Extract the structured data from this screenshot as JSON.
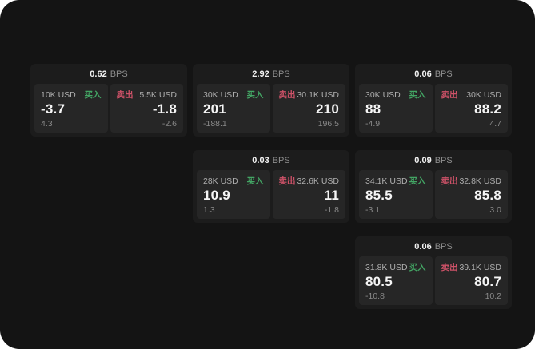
{
  "labels": {
    "bps_unit": "BPS",
    "buy": "买入",
    "sell": "卖出"
  },
  "colors": {
    "outer_background": "#ffffff",
    "panel_background": "#141414",
    "card_background": "#1c1c1c",
    "tile_background": "#262626",
    "buy_green": "#43a564",
    "sell_red": "#ce5268",
    "text_primary": "#f5f5f5",
    "text_secondary": "#aeaeae",
    "text_muted": "#8a8a8a"
  },
  "cards": [
    {
      "bps": "0.62",
      "buy": {
        "amount": "10K USD",
        "price": "-3.7",
        "delta": "4.3"
      },
      "sell": {
        "amount": "5.5K USD",
        "price": "-1.8",
        "delta": "-2.6"
      }
    },
    {
      "bps": "2.92",
      "buy": {
        "amount": "30K USD",
        "price": "201",
        "delta": "-188.1"
      },
      "sell": {
        "amount": "30.1K USD",
        "price": "210",
        "delta": "196.5"
      }
    },
    {
      "bps": "0.06",
      "buy": {
        "amount": "30K USD",
        "price": "88",
        "delta": "-4.9"
      },
      "sell": {
        "amount": "30K USD",
        "price": "88.2",
        "delta": "4.7"
      }
    },
    {
      "bps": "0.03",
      "buy": {
        "amount": "28K USD",
        "price": "10.9",
        "delta": "1.3"
      },
      "sell": {
        "amount": "32.6K USD",
        "price": "11",
        "delta": "-1.8"
      }
    },
    {
      "bps": "0.09",
      "buy": {
        "amount": "34.1K USD",
        "price": "85.5",
        "delta": "-3.1"
      },
      "sell": {
        "amount": "32.8K USD",
        "price": "85.8",
        "delta": "3.0"
      }
    },
    {
      "bps": "0.06",
      "buy": {
        "amount": "31.8K USD",
        "price": "80.5",
        "delta": "-10.8"
      },
      "sell": {
        "amount": "39.1K USD",
        "price": "80.7",
        "delta": "10.2"
      }
    }
  ]
}
